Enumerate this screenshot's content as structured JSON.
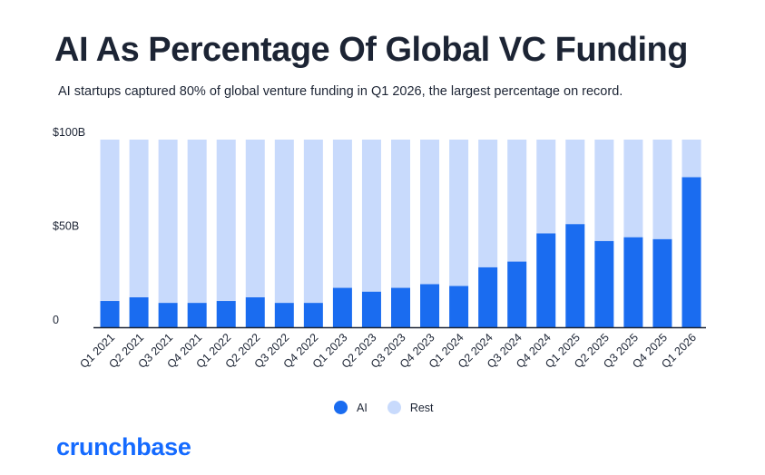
{
  "title": "AI As Percentage Of Global VC Funding",
  "subtitle": "AI startups captured 80% of global venture funding in Q1 2026, the largest percentage on record.",
  "logo": "crunchbase",
  "colors": {
    "ai": "#1a6cf0",
    "rest": "#c8dafc",
    "axis": "#1c2434"
  },
  "chart_data": {
    "type": "bar",
    "stacked": true,
    "normalized": true,
    "categories": [
      "Q1 2021",
      "Q2 2021",
      "Q3 2021",
      "Q4 2021",
      "Q1 2022",
      "Q2 2022",
      "Q3 2022",
      "Q4 2022",
      "Q1 2023",
      "Q2 2023",
      "Q3 2023",
      "Q4 2023",
      "Q1 2024",
      "Q2 2024",
      "Q3 2024",
      "Q4 2024",
      "Q1 2025",
      "Q2 2025",
      "Q3 2025",
      "Q4 2025",
      "Q1 2026"
    ],
    "series": [
      {
        "name": "AI",
        "values": [
          14,
          16,
          13,
          13,
          14,
          16,
          13,
          13,
          21,
          19,
          21,
          23,
          22,
          32,
          35,
          50,
          55,
          46,
          48,
          47,
          80
        ]
      },
      {
        "name": "Rest",
        "values": [
          86,
          84,
          87,
          87,
          86,
          84,
          87,
          87,
          79,
          81,
          79,
          77,
          78,
          68,
          65,
          50,
          45,
          54,
          52,
          53,
          20
        ]
      }
    ],
    "yticks": [
      "0",
      "$50B",
      "$100B"
    ],
    "ylim": [
      0,
      100
    ],
    "legend": "bottom-center",
    "grid": false
  }
}
